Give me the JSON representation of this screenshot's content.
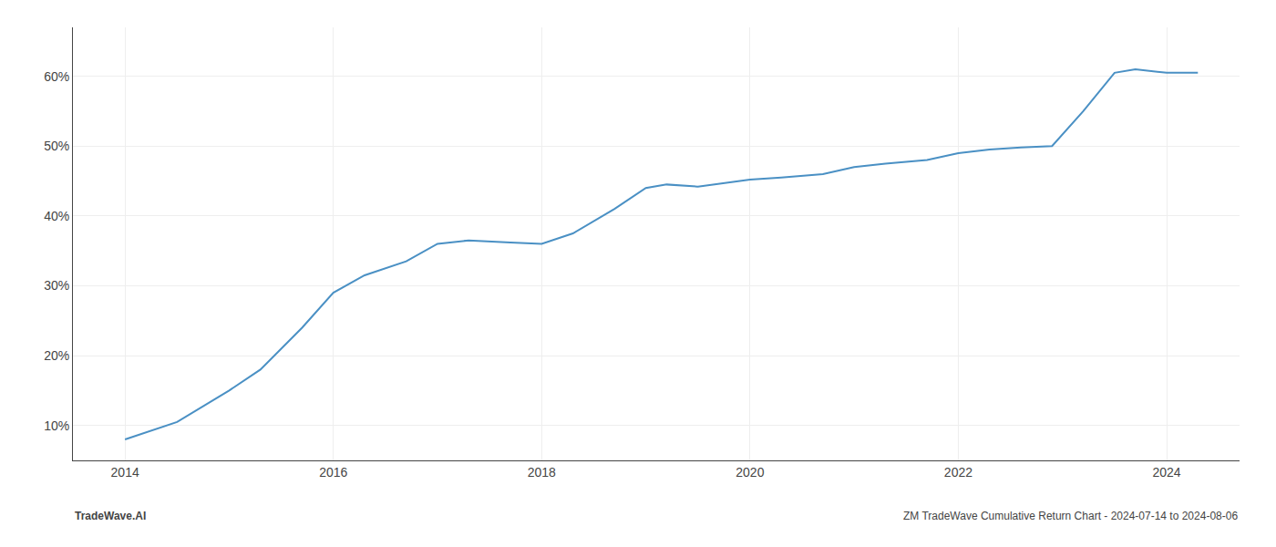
{
  "chart_data": {
    "type": "line",
    "x": [
      2014.0,
      2014.5,
      2015.0,
      2015.3,
      2015.7,
      2016.0,
      2016.3,
      2016.7,
      2017.0,
      2017.3,
      2017.7,
      2018.0,
      2018.3,
      2018.7,
      2019.0,
      2019.2,
      2019.5,
      2019.8,
      2020.0,
      2020.3,
      2020.7,
      2021.0,
      2021.3,
      2021.7,
      2022.0,
      2022.3,
      2022.6,
      2022.9,
      2023.2,
      2023.5,
      2023.7,
      2024.0,
      2024.3
    ],
    "values": [
      8.0,
      10.5,
      15.0,
      18.0,
      24.0,
      29.0,
      31.5,
      33.5,
      36.0,
      36.5,
      36.2,
      36.0,
      37.5,
      41.0,
      44.0,
      44.5,
      44.2,
      44.8,
      45.2,
      45.5,
      46.0,
      47.0,
      47.5,
      48.0,
      49.0,
      49.5,
      49.8,
      50.0,
      55.0,
      60.5,
      61.0,
      60.5,
      60.5
    ],
    "color": "#4a90c4",
    "xlim": [
      2013.5,
      2024.7
    ],
    "ylim": [
      5,
      67
    ],
    "xticks": [
      2014,
      2016,
      2018,
      2020,
      2022,
      2024
    ],
    "yticks": [
      {
        "value": 10,
        "label": "10%"
      },
      {
        "value": 20,
        "label": "20%"
      },
      {
        "value": 30,
        "label": "30%"
      },
      {
        "value": 40,
        "label": "40%"
      },
      {
        "value": 50,
        "label": "50%"
      },
      {
        "value": 60,
        "label": "60%"
      }
    ],
    "grid": true,
    "annotations": [
      "TradeWave.AI",
      "ZM TradeWave Cumulative Return Chart - 2024-07-14 to 2024-08-06"
    ]
  }
}
